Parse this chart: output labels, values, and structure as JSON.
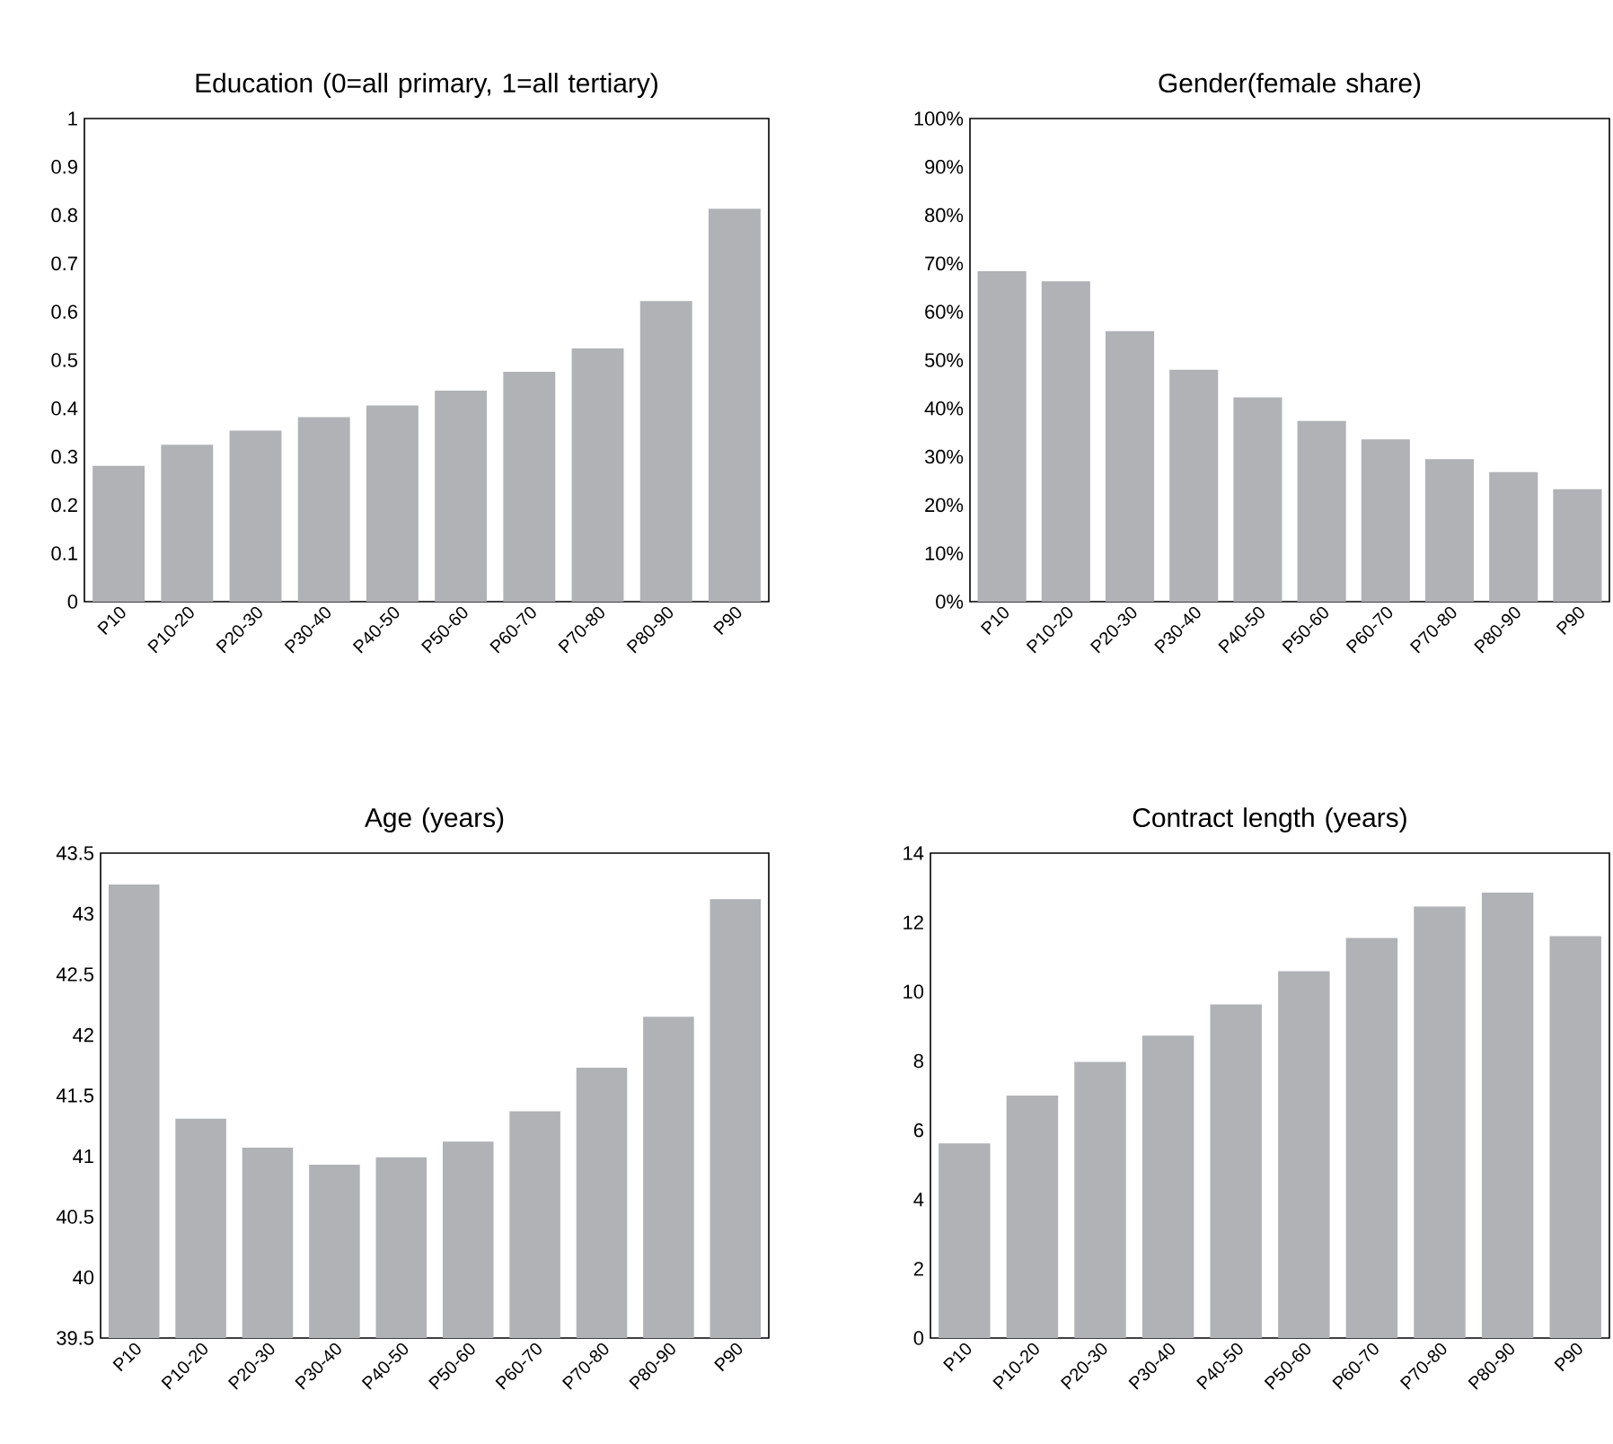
{
  "chart_data": [
    {
      "type": "bar",
      "title": "Education (0=all primary, 1=all tertiary)",
      "categories": [
        "P10",
        "P10-20",
        "P20-30",
        "P30-40",
        "P40-50",
        "P50-60",
        "P60-70",
        "P70-80",
        "P80-90",
        "P90"
      ],
      "values": [
        0.281,
        0.325,
        0.354,
        0.382,
        0.406,
        0.437,
        0.476,
        0.524,
        0.622,
        0.813
      ],
      "color": "#b1b2b6",
      "ylim": [
        0,
        1
      ],
      "yticks": [
        0,
        0.1,
        0.2,
        0.3,
        0.4,
        0.5,
        0.6,
        0.7,
        0.8,
        0.9,
        1
      ]
    },
    {
      "type": "bar",
      "title": "Gender(female share)",
      "categories": [
        "P10",
        "P10-20",
        "P20-30",
        "P30-40",
        "P40-50",
        "P50-60",
        "P60-70",
        "P70-80",
        "P80-90",
        "P90"
      ],
      "values": [
        68.4,
        66.3,
        56.0,
        48.0,
        42.3,
        37.4,
        33.6,
        29.5,
        26.8,
        23.3
      ],
      "color": "#b1b2b6",
      "ylim": [
        0,
        100
      ],
      "yticks": [
        {
          "value": 0,
          "label": "0%"
        },
        {
          "value": 10,
          "label": "10%"
        },
        {
          "value": 20,
          "label": "20%"
        },
        {
          "value": 30,
          "label": "30%"
        },
        {
          "value": 40,
          "label": "40%"
        },
        {
          "value": 50,
          "label": "50%"
        },
        {
          "value": 60,
          "label": "60%"
        },
        {
          "value": 70,
          "label": "70%"
        },
        {
          "value": 80,
          "label": "80%"
        },
        {
          "value": 90,
          "label": "90%"
        },
        {
          "value": 100,
          "label": "100%"
        }
      ]
    },
    {
      "type": "bar",
      "title": "Age (years)",
      "categories": [
        "P10",
        "P10-20",
        "P20-30",
        "P30-40",
        "P40-50",
        "P50-60",
        "P60-70",
        "P70-80",
        "P80-90",
        "P90"
      ],
      "values": [
        43.24,
        41.31,
        41.07,
        40.93,
        40.99,
        41.12,
        41.37,
        41.73,
        42.15,
        43.12
      ],
      "color": "#b1b2b6",
      "ylim": [
        39.5,
        43.5
      ],
      "yticks": [
        39.5,
        40,
        40.5,
        41,
        41.5,
        42,
        42.5,
        43,
        43.5
      ]
    },
    {
      "type": "bar",
      "title": "Contract length (years)",
      "categories": [
        "P10",
        "P10-20",
        "P20-30",
        "P30-40",
        "P40-50",
        "P50-60",
        "P60-70",
        "P70-80",
        "P80-90",
        "P90"
      ],
      "values": [
        5.62,
        7.0,
        7.97,
        8.73,
        9.63,
        10.59,
        11.55,
        12.46,
        12.86,
        11.6
      ],
      "color": "#b1b2b6",
      "ylim": [
        0,
        14
      ],
      "yticks": [
        0,
        2,
        4,
        6,
        8,
        10,
        12,
        14
      ]
    }
  ]
}
